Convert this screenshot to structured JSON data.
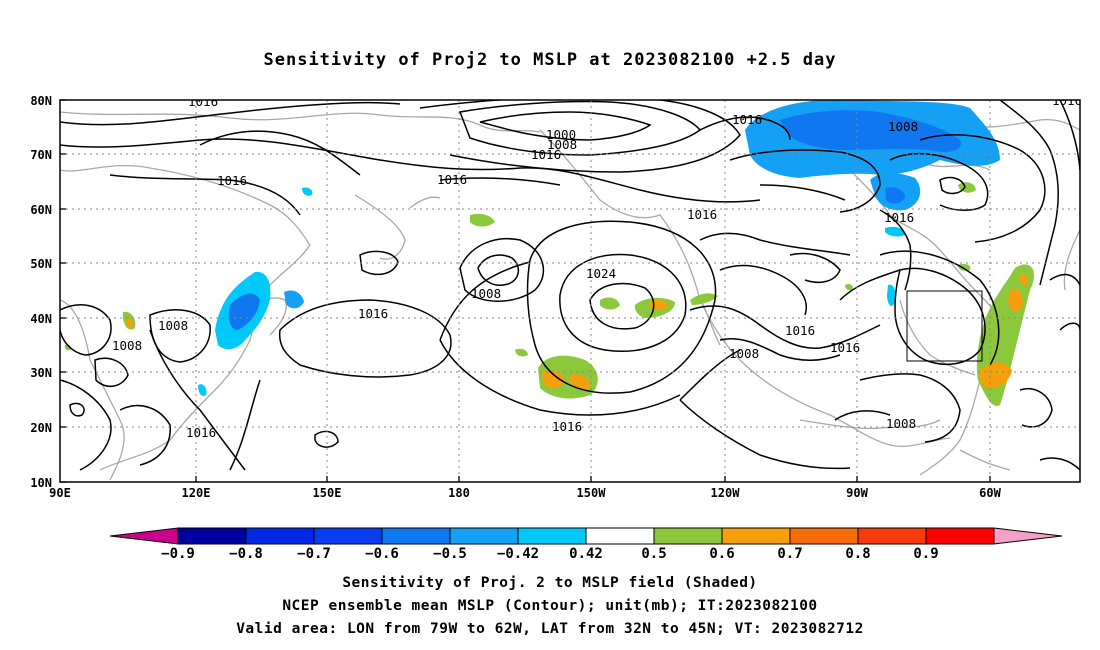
{
  "title": "Sensitivity of Proj2 to MSLP at 2023082100 +2.5 day",
  "lat_labels": [
    "80N",
    "70N",
    "60N",
    "50N",
    "40N",
    "30N",
    "20N",
    "10N"
  ],
  "lon_labels": [
    "90E",
    "120E",
    "150E",
    "180",
    "150W",
    "120W",
    "90W",
    "60W"
  ],
  "contour_labels": [
    "1016",
    "1000",
    "1008",
    "1016",
    "1016",
    "1008",
    "1016",
    "1016",
    "1016",
    "1016",
    "1008",
    "1008",
    "1016",
    "1008",
    "1024",
    "1016",
    "1016",
    "1008",
    "1016",
    "1016",
    "1008",
    "1016",
    "1008",
    "1016",
    "16"
  ],
  "colorbar": {
    "labels": [
      "-0.9",
      "-0.8",
      "-0.7",
      "-0.6",
      "-0.5",
      "-0.42",
      "0.42",
      "0.5",
      "0.6",
      "0.7",
      "0.8",
      "0.9"
    ],
    "colors": [
      "#c8008c",
      "#0000a0",
      "#0028e6",
      "#0a3cf0",
      "#0f78f0",
      "#14a0f5",
      "#00c8f8",
      "#ffffff",
      "#8cc83c",
      "#f5a00a",
      "#f56e0a",
      "#f53c0a",
      "#ff0000",
      "#f5a0c8"
    ]
  },
  "footer": {
    "line1": "Sensitivity of Proj. 2 to MSLP field (Shaded)",
    "line2": "NCEP ensemble mean MSLP (Contour); unit(mb); IT:2023082100",
    "line3": "Valid area: LON from 79W to 62W, LAT from 32N to 45N; VT: 2023082712"
  }
}
